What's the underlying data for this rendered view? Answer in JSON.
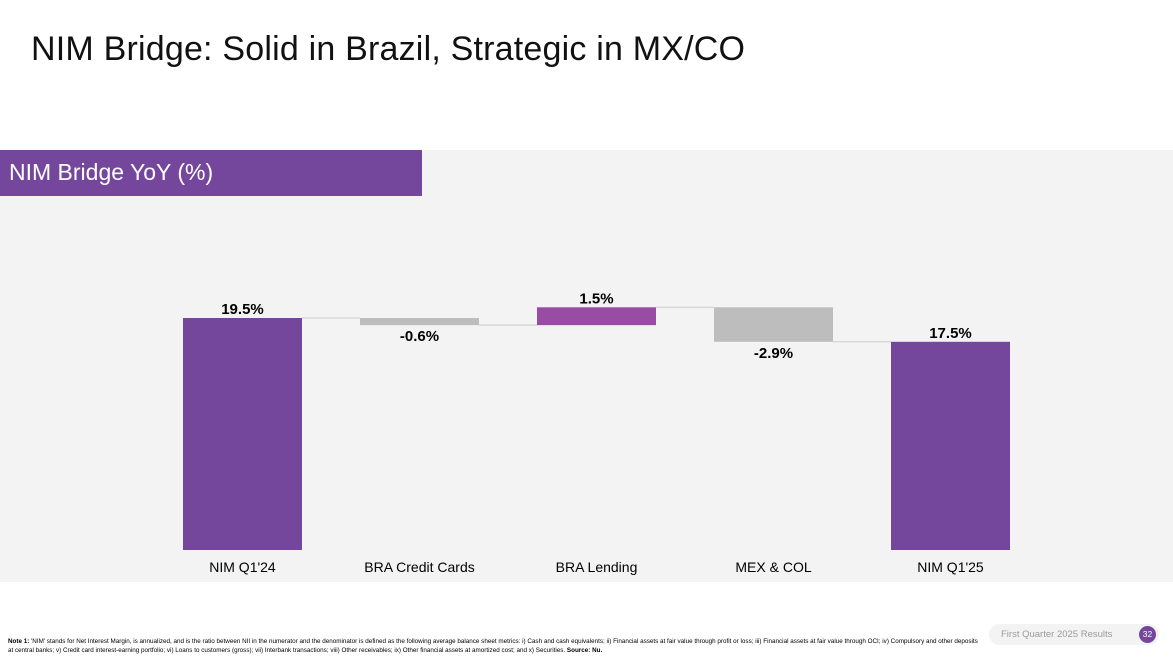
{
  "slide": {
    "title": "NIM Bridge: Solid in Brazil, Strategic in MX/CO",
    "panel_title": "NIM Bridge YoY (%)",
    "footnote_label": "Note 1:",
    "footnote_text": "'NIM' stands for Net Interest Margin, is annualized, and is the ratio between NII in the numerator and the denominator is defined as the following average balance sheet metrics: i) Cash and cash equivalents; ii) Financial assets at fair value through profit or loss; iii) Financial assets at fair value through OCI; iv) Compulsory and other deposits at central banks; v) Credit card interest-earning portfolio; vi) Loans to customers (gross); vii) Interbank transactions; viii) Other receivables; ix) Other financial assets at amortized cost; and x) Securities.",
    "source_text": "Source: Nu.",
    "footer_text": "First Quarter 2025 Results",
    "page_number": "32"
  },
  "chart_data": {
    "type": "waterfall",
    "title": "NIM Bridge YoY (%)",
    "unit": "%",
    "ylim": [
      0,
      21
    ],
    "categories": [
      "NIM Q1'24",
      "BRA Credit Cards",
      "BRA Lending",
      "MEX & COL",
      "NIM Q1'25"
    ],
    "values": [
      19.5,
      -0.6,
      1.5,
      -2.9,
      17.5
    ],
    "kinds": [
      "total",
      "delta",
      "delta",
      "delta",
      "total"
    ],
    "labels": [
      "19.5%",
      "-0.6%",
      "1.5%",
      "-2.9%",
      "17.5%"
    ],
    "colors": {
      "total": "#75479c",
      "increase": "#994ca3",
      "decrease": "#bdbdbd",
      "connector": "#cccccc"
    }
  }
}
